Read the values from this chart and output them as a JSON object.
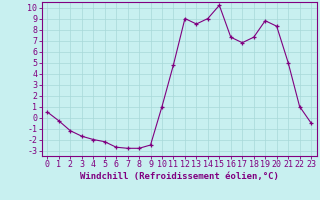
{
  "x": [
    0,
    1,
    2,
    3,
    4,
    5,
    6,
    7,
    8,
    9,
    10,
    11,
    12,
    13,
    14,
    15,
    16,
    17,
    18,
    19,
    20,
    21,
    22,
    23
  ],
  "y": [
    0.5,
    -0.3,
    -1.2,
    -1.7,
    -2.0,
    -2.2,
    -2.7,
    -2.8,
    -2.8,
    -2.5,
    1.0,
    4.8,
    9.0,
    8.5,
    9.0,
    10.2,
    7.3,
    6.8,
    7.3,
    8.8,
    8.3,
    5.0,
    1.0,
    -0.5
  ],
  "line_color": "#800080",
  "marker_color": "#800080",
  "bg_color": "#c8f0f0",
  "grid_color": "#a8d8d8",
  "xlabel": "Windchill (Refroidissement éolien,°C)",
  "xlim": [
    -0.5,
    23.5
  ],
  "ylim": [
    -3.5,
    10.5
  ],
  "yticks": [
    -3,
    -2,
    -1,
    0,
    1,
    2,
    3,
    4,
    5,
    6,
    7,
    8,
    9,
    10
  ],
  "xticks": [
    0,
    1,
    2,
    3,
    4,
    5,
    6,
    7,
    8,
    9,
    10,
    11,
    12,
    13,
    14,
    15,
    16,
    17,
    18,
    19,
    20,
    21,
    22,
    23
  ],
  "axis_color": "#800080",
  "tick_color": "#800080",
  "font_family": "monospace",
  "xlabel_fontsize": 6.5,
  "tick_fontsize": 6.0
}
